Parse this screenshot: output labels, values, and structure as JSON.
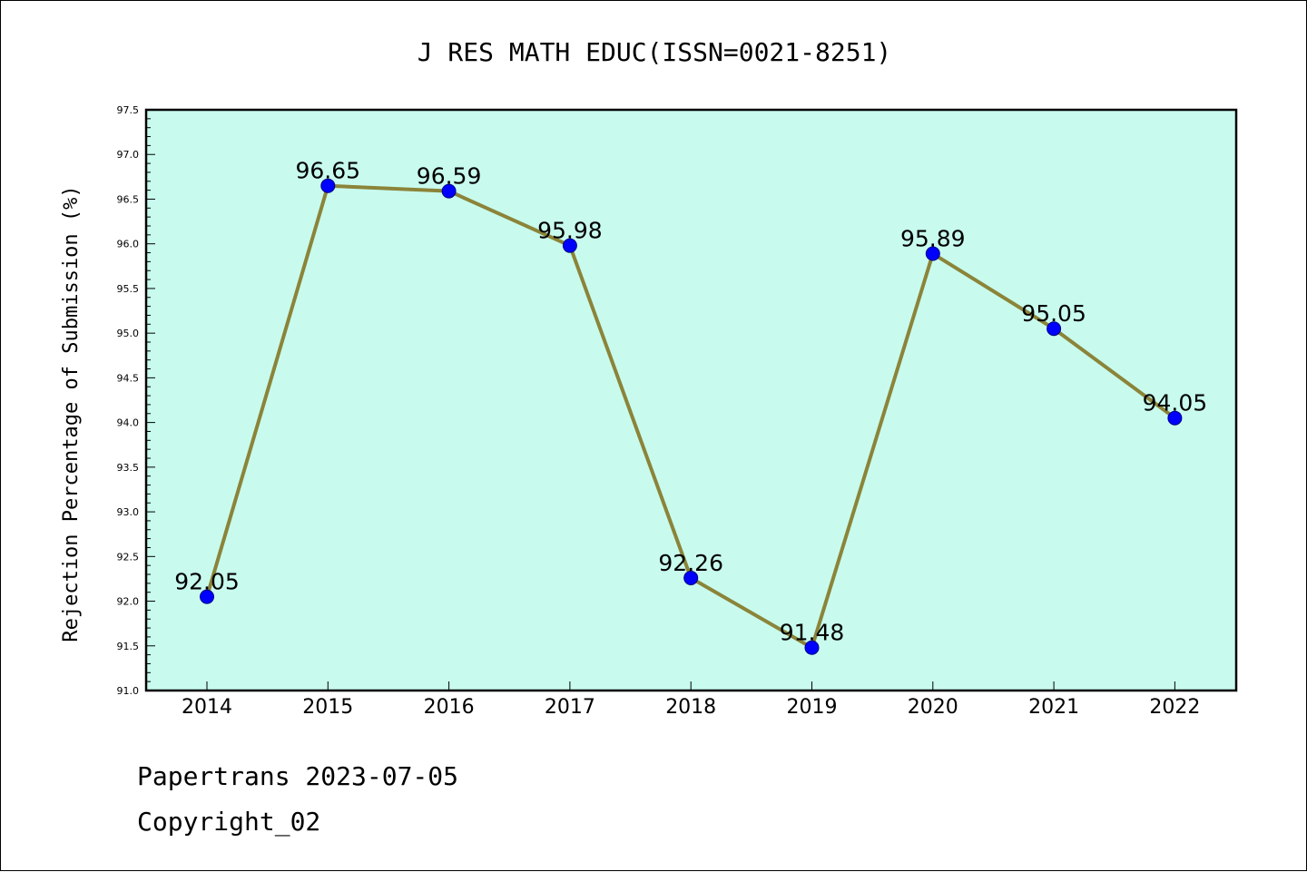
{
  "chart_data": {
    "type": "line",
    "title": "J RES MATH EDUC(ISSN=0021-8251)",
    "ylabel": "Rejection Percentage of Submission (%)",
    "xlabel": "",
    "x": [
      "2014",
      "2015",
      "2016",
      "2017",
      "2018",
      "2019",
      "2020",
      "2021",
      "2022"
    ],
    "values": [
      92.05,
      96.65,
      96.59,
      95.98,
      92.26,
      91.48,
      95.89,
      95.05,
      94.05
    ],
    "labels": [
      "92.05",
      "96.65",
      "96.59",
      "95.98",
      "92.26",
      "91.48",
      "95.89",
      "95.05",
      "94.05"
    ],
    "ylim": [
      91.0,
      97.5
    ],
    "yticks": [
      "91.0",
      "91.5",
      "92.0",
      "92.5",
      "93.0",
      "93.5",
      "94.0",
      "94.5",
      "95.0",
      "95.5",
      "96.0",
      "96.5",
      "97.0",
      "97.5"
    ],
    "grid": false,
    "colors": {
      "plot_background": "#c8fbee",
      "line": "#8b8439",
      "marker": "#0000ff",
      "marker_edge": "#000080"
    }
  },
  "footer": {
    "line1": "Papertrans 2023-07-05",
    "line2": "Copyright_02"
  }
}
